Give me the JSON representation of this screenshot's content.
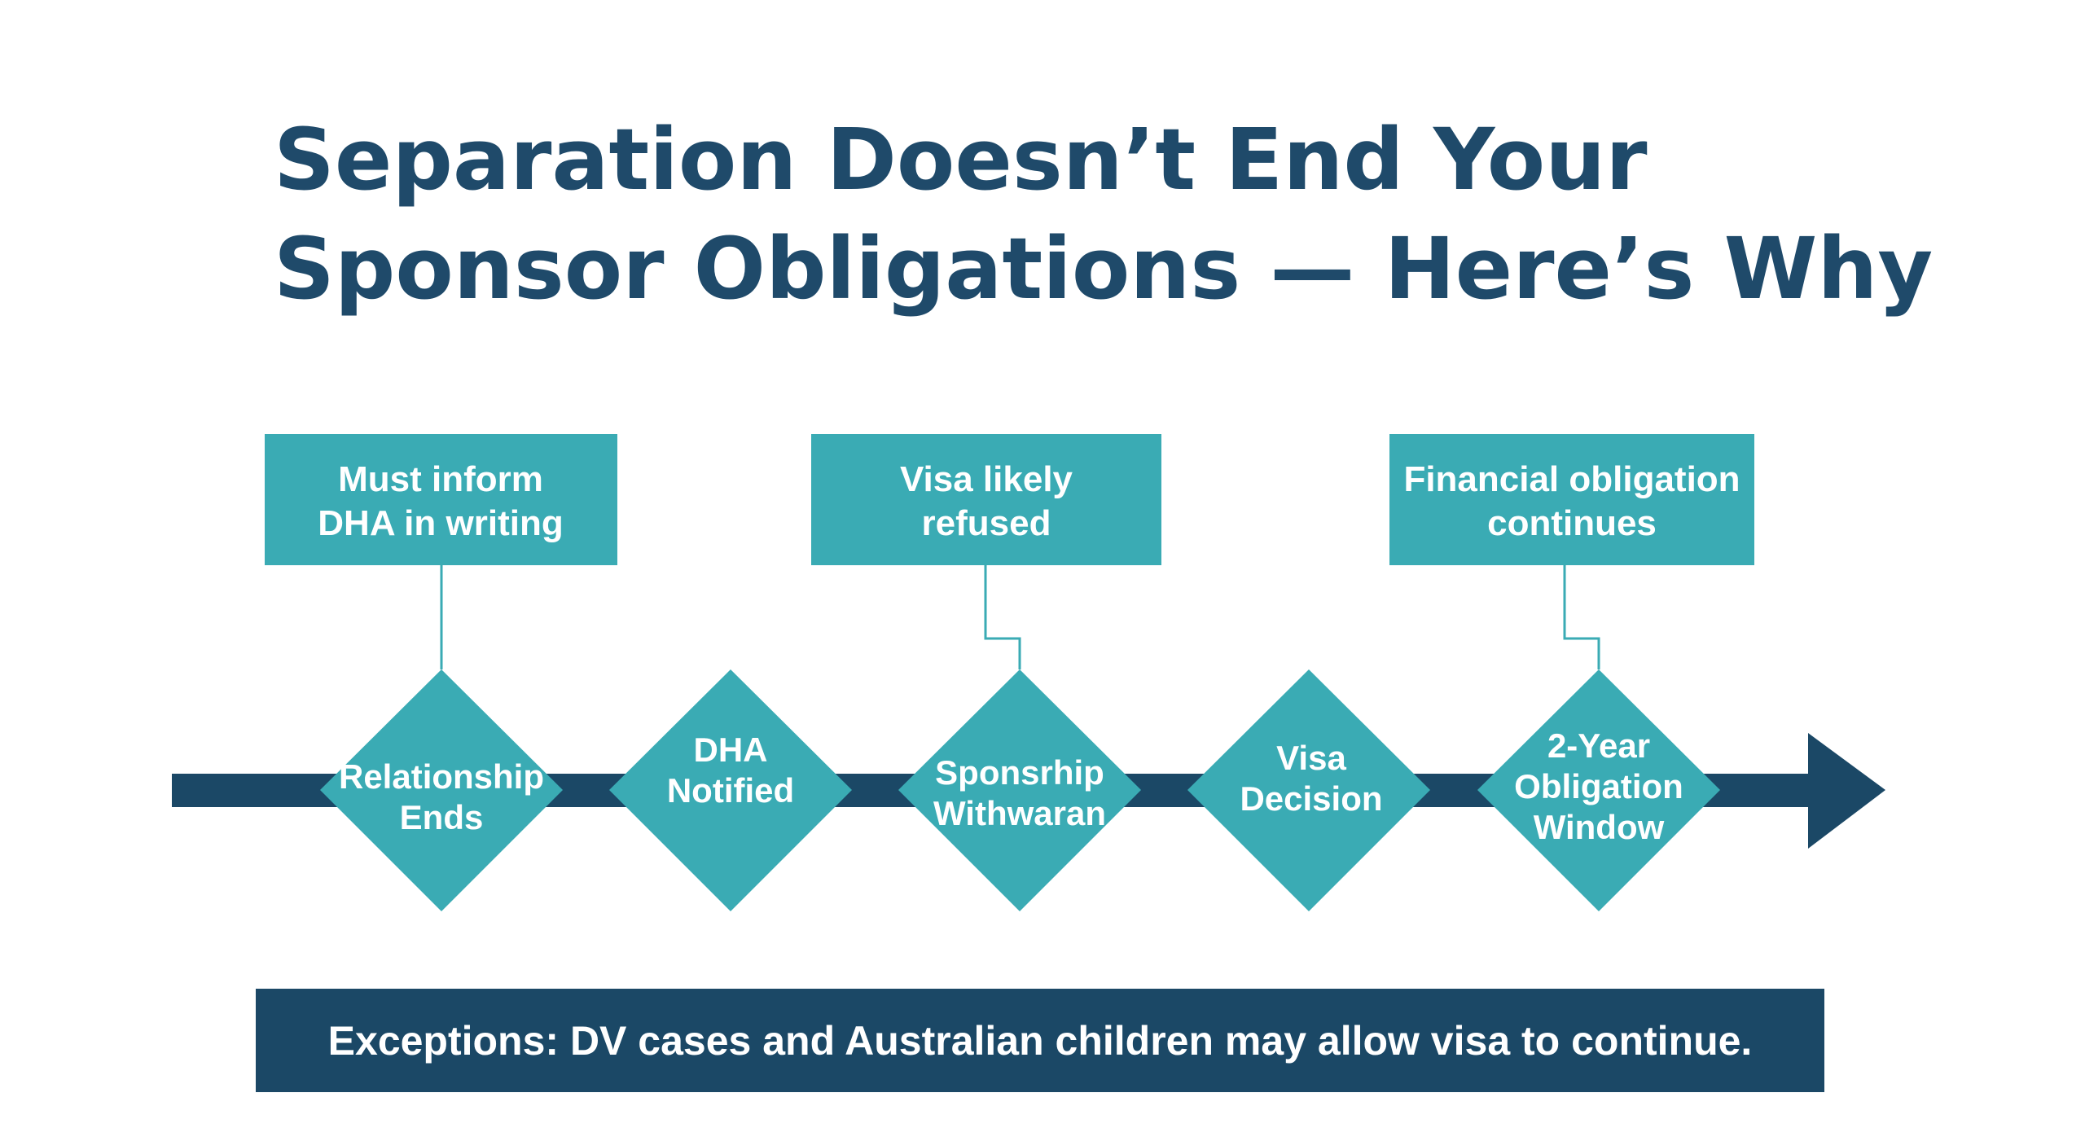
{
  "title": {
    "line1": "Separation Doesn’t End Your",
    "line2": "Sponsor Obligations — Here’s Why"
  },
  "colors": {
    "title": "#1f4a6a",
    "teal": "#3aabb4",
    "navy": "#1b4866"
  },
  "callouts": [
    {
      "line1": "Must inform",
      "line2": "DHA in writing"
    },
    {
      "line1": "Visa likely",
      "line2": "refused"
    },
    {
      "line1": "Financial obligation",
      "line2": "continues"
    }
  ],
  "steps": [
    {
      "lines": [
        "Relationship",
        "Ends"
      ]
    },
    {
      "lines": [
        "DHA",
        "Notified"
      ]
    },
    {
      "lines": [
        "Sponsrhip",
        "Withwaran"
      ]
    },
    {
      "lines": [
        "Visa",
        "Decision"
      ]
    },
    {
      "lines": [
        "2-Year",
        "Obligation",
        "Window"
      ]
    }
  ],
  "banner": "Exceptions: DV cases and Australian children may allow visa to continue."
}
